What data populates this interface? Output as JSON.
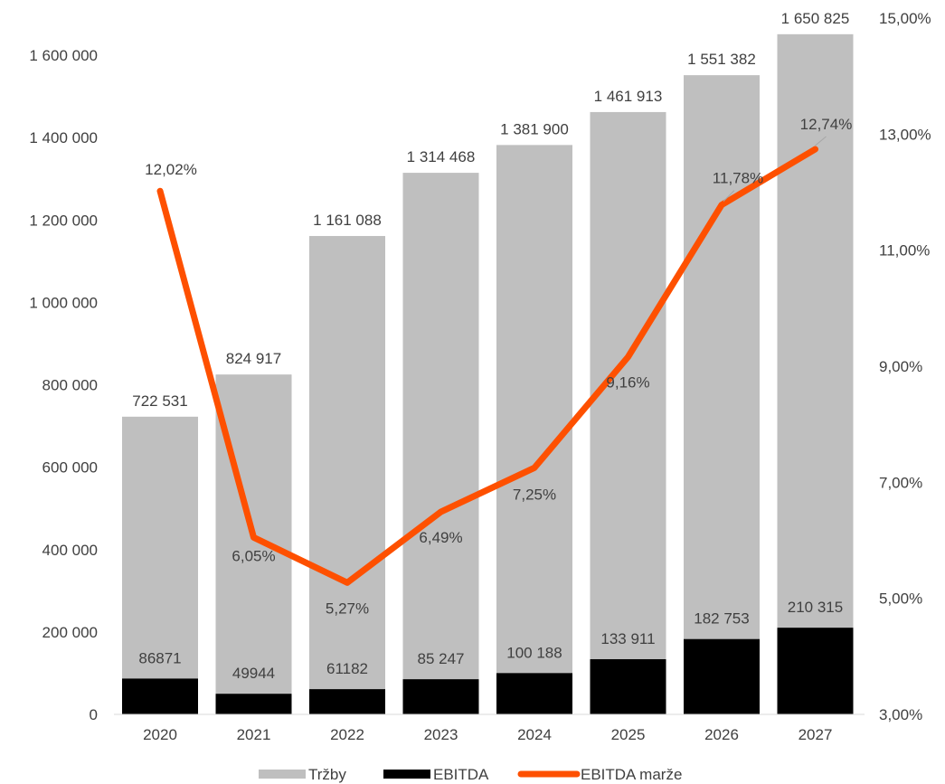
{
  "chart_data": {
    "type": "bar",
    "categories": [
      "2020",
      "2021",
      "2022",
      "2023",
      "2024",
      "2025",
      "2026",
      "2027"
    ],
    "series": [
      {
        "name": "Tržby",
        "kind": "bar",
        "axis": "left",
        "color": "#bfbfbf",
        "values": [
          722531,
          824917,
          1161088,
          1314468,
          1381900,
          1461913,
          1551382,
          1650825
        ],
        "labels": [
          "722 531",
          "824 917",
          "1 161 088",
          "1 314 468",
          "1 381 900",
          "1 461 913",
          "1 551 382",
          "1 650 825"
        ]
      },
      {
        "name": "EBITDA",
        "kind": "bar",
        "axis": "left",
        "color": "#000000",
        "values": [
          86871,
          49944,
          61182,
          85247,
          100188,
          133911,
          182753,
          210315
        ],
        "labels": [
          "86871",
          "49944",
          "61182",
          "85 247",
          "100 188",
          "133 911",
          "182 753",
          "210 315"
        ]
      },
      {
        "name": "EBITDA marže",
        "kind": "line",
        "axis": "right",
        "color": "#fe5000",
        "values": [
          12.02,
          6.05,
          5.27,
          6.49,
          7.25,
          9.16,
          11.78,
          12.74
        ],
        "labels": [
          "12,02%",
          "6,05%",
          "5,27%",
          "6,49%",
          "7,25%",
          "9,16%",
          "11,78%",
          "12,74%"
        ]
      }
    ],
    "left_axis": {
      "min": 0,
      "max": 1600000,
      "ticks": [
        0,
        200000,
        400000,
        600000,
        800000,
        1000000,
        1200000,
        1400000,
        1600000
      ],
      "tick_labels": [
        "0",
        "200 000",
        "400 000",
        "600 000",
        "800 000",
        "1 000 000",
        "1 200 000",
        "1 400 000",
        "1 600 000"
      ]
    },
    "right_axis": {
      "min": 3,
      "max": 15,
      "ticks": [
        3,
        5,
        7,
        9,
        11,
        13,
        15
      ],
      "tick_labels": [
        "3,00%",
        "5,00%",
        "7,00%",
        "9,00%",
        "11,00%",
        "13,00%",
        "15,00%"
      ]
    },
    "legend": {
      "position": "bottom",
      "items": [
        "Tržby",
        "EBITDA",
        "EBITDA marže"
      ]
    },
    "grid": false
  }
}
